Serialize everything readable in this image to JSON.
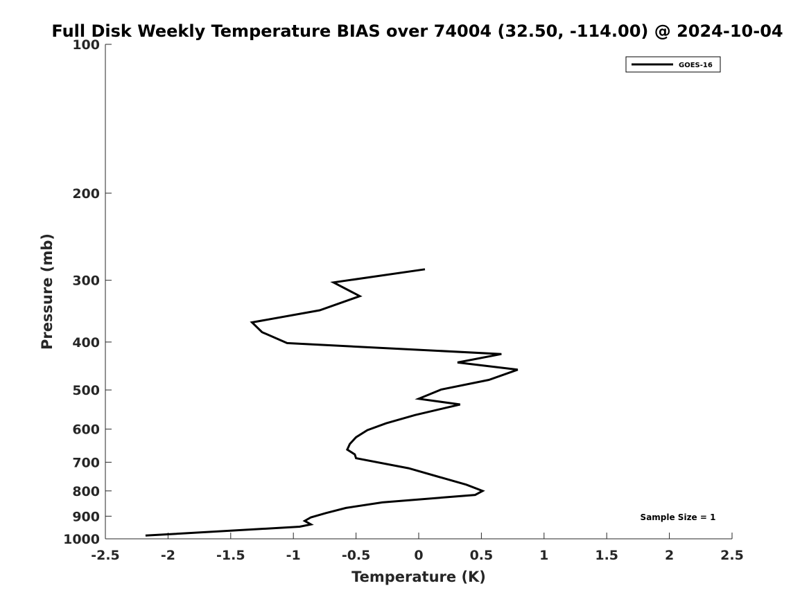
{
  "chart_data": {
    "type": "line",
    "title": "Full Disk Weekly Temperature BIAS over 74004 (32.50, -114.00) @ 2024-10-04",
    "xlabel": "Temperature (K)",
    "ylabel": "Pressure (mb)",
    "xlim": [
      -2.5,
      2.5
    ],
    "ylim": [
      100,
      1000
    ],
    "y_scale": "log",
    "y_reversed": true,
    "x_ticks": [
      "-2.5",
      "-2",
      "-1.5",
      "-1",
      "-0.5",
      "0",
      "0.5",
      "1",
      "1.5",
      "2",
      "2.5"
    ],
    "x_tick_values": [
      -2.5,
      -2,
      -1.5,
      -1,
      -0.5,
      0,
      0.5,
      1,
      1.5,
      2,
      2.5
    ],
    "y_ticks": [
      "100",
      "200",
      "300",
      "400",
      "500",
      "600",
      "700",
      "800",
      "900",
      "1000"
    ],
    "y_tick_values": [
      100,
      200,
      300,
      400,
      500,
      600,
      700,
      800,
      900,
      1000
    ],
    "grid": false,
    "legend_position": "top-right",
    "series": [
      {
        "name": "GOES-16",
        "color": "#000000",
        "x": [
          0.05,
          -0.68,
          -0.47,
          -0.79,
          -1.33,
          -1.25,
          -1.05,
          0.66,
          0.31,
          0.79,
          0.56,
          0.18,
          0.0,
          0.33,
          -0.03,
          -0.26,
          -0.41,
          -0.5,
          -0.55,
          -0.57,
          -0.51,
          -0.5,
          -0.08,
          0.15,
          0.38,
          0.51,
          0.45,
          -0.29,
          -0.58,
          -0.74,
          -0.86,
          -0.91,
          -0.86,
          -0.95,
          -2.18
        ],
        "y": [
          285,
          303,
          323,
          345,
          365,
          382,
          402,
          423,
          440,
          455,
          477,
          499,
          521,
          535,
          562,
          584,
          603,
          623,
          643,
          660,
          675,
          687,
          720,
          748,
          777,
          800,
          815,
          844,
          866,
          887,
          905,
          920,
          935,
          945,
          985
        ]
      }
    ],
    "annotations": [
      "Sample Size = 1"
    ]
  }
}
